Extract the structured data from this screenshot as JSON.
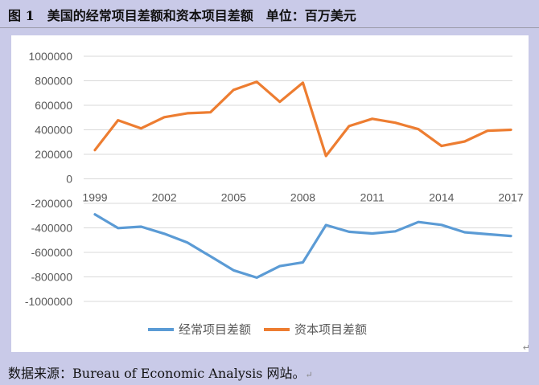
{
  "title": "图 1　美国的经常项目差额和资本项目差额　单位：百万美元",
  "source": "数据来源：Bureau of Economic Analysis 网站。",
  "chart_data": {
    "type": "line",
    "title": "",
    "xlabel": "",
    "ylabel": "",
    "x": [
      1999,
      2000,
      2001,
      2002,
      2003,
      2004,
      2005,
      2006,
      2007,
      2008,
      2009,
      2010,
      2011,
      2012,
      2013,
      2014,
      2015,
      2016,
      2017
    ],
    "x_tick_labels": [
      "1999",
      "2002",
      "2005",
      "2008",
      "2011",
      "2014",
      "2017"
    ],
    "y_tick_labels": [
      "1000000",
      "800000",
      "600000",
      "400000",
      "200000",
      "0",
      "-200000",
      "-400000",
      "-600000",
      "-800000",
      "-1000000"
    ],
    "ylim": [
      -1000000,
      1000000
    ],
    "grid": true,
    "legend_position": "bottom",
    "series": [
      {
        "name": "经常项目差额",
        "color": "#5b9bd5",
        "values": [
          -290000,
          -402000,
          -390000,
          -448000,
          -520000,
          -632000,
          -746000,
          -806000,
          -712000,
          -681000,
          -377000,
          -432000,
          -446000,
          -428000,
          -352000,
          -376000,
          -436000,
          -452000,
          -466000
        ]
      },
      {
        "name": "资本项目差额",
        "color": "#ed7d31",
        "values": [
          235000,
          478000,
          412000,
          503000,
          535000,
          543000,
          725000,
          792000,
          628000,
          784000,
          187000,
          430000,
          490000,
          458000,
          405000,
          268000,
          305000,
          393000,
          400000
        ]
      }
    ]
  }
}
